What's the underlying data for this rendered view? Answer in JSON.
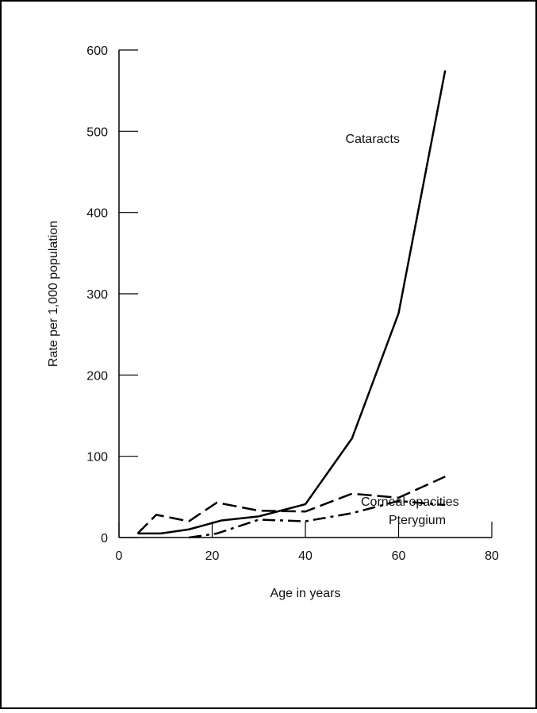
{
  "chart_data": {
    "type": "line",
    "xlabel": "Age in years",
    "ylabel": "Rate per 1,000 population",
    "xlim": [
      0,
      80
    ],
    "xticks": [
      0,
      20,
      40,
      60,
      80
    ],
    "ylim": [
      0,
      600
    ],
    "yticks": [
      0,
      100,
      200,
      300,
      400,
      500,
      600
    ],
    "series": [
      {
        "name": "Cataracts",
        "color": "#000000",
        "line_style": "solid",
        "x": [
          4,
          9,
          15,
          22,
          30,
          40,
          50,
          60,
          70
        ],
        "values": [
          5,
          5,
          10,
          21,
          26,
          41,
          122,
          276,
          575
        ]
      },
      {
        "name": "Corneal opacities",
        "color": "#000000",
        "line_style": "dashed",
        "x": [
          4,
          8,
          15,
          21,
          30,
          40,
          50,
          60,
          70
        ],
        "values": [
          5,
          28,
          20,
          43,
          33,
          32,
          54,
          49,
          75
        ]
      },
      {
        "name": "Pterygium",
        "color": "#000000",
        "line_style": "dashdot",
        "x": [
          15,
          21,
          30,
          40,
          50,
          60,
          70
        ],
        "values": [
          0,
          5,
          22,
          20,
          30,
          45,
          40
        ]
      }
    ]
  }
}
